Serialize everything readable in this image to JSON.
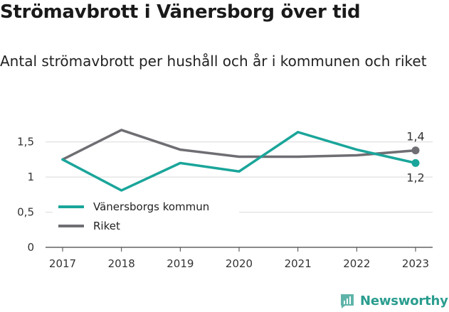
{
  "title": "Strömavbrott i Vänersborg över tid",
  "subtitle": "Antal strömavbrott per hushåll och år i kommunen och riket",
  "brand": {
    "name": "Newsworthy",
    "icon": "newsworthy-logo-icon"
  },
  "chart_data": {
    "type": "line",
    "x": [
      "2017",
      "2018",
      "2019",
      "2020",
      "2021",
      "2022",
      "2023"
    ],
    "series": [
      {
        "name": "Vänersborgs kommun",
        "color": "#1aa59a",
        "values": [
          1.25,
          0.81,
          1.2,
          1.08,
          1.64,
          1.39,
          1.2
        ],
        "end_label": "1,2"
      },
      {
        "name": "Riket",
        "color": "#6e6e73",
        "values": [
          1.25,
          1.67,
          1.39,
          1.29,
          1.29,
          1.31,
          1.38
        ],
        "end_label": "1,4"
      }
    ],
    "y_ticks": [
      0,
      0.5,
      1,
      1.5
    ],
    "y_tick_labels": [
      "0",
      "0,5",
      "1",
      "1,5"
    ],
    "ylim": [
      0,
      1.75
    ],
    "grid": true,
    "legend_position": "bottom-left"
  }
}
